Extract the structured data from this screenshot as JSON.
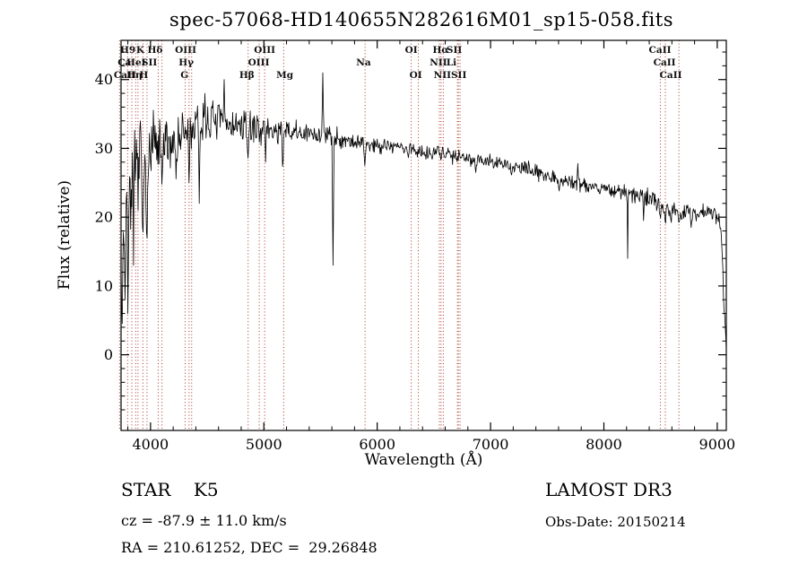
{
  "title": "spec-57068-HD140655N282616M01_sp15-058.fits",
  "axes": {
    "x_label": "Wavelength (Å)",
    "y_label": "Flux (relative)",
    "x_ticks": [
      4000,
      5000,
      6000,
      7000,
      8000,
      9000
    ],
    "y_ticks": [
      0,
      10,
      20,
      30,
      40
    ],
    "xlim": [
      3740,
      9080
    ],
    "ylim": [
      -11,
      45.7
    ]
  },
  "footer": {
    "object_type": "STAR    K5",
    "survey": "LAMOST DR3",
    "cz": "cz = -87.9 ± 11.0 km/s",
    "obs_date": "Obs-Date: 20150214",
    "coords": "RA = 210.61252, DEC =  29.26848"
  },
  "chart_data": {
    "type": "line",
    "title": "spec-57068-HD140655N282616M01_sp15-058.fits",
    "xlabel": "Wavelength (Å)",
    "ylabel": "Flux (relative)",
    "xlim": [
      3740,
      9080
    ],
    "ylim": [
      -11,
      45.7
    ],
    "grid": false,
    "line_color": "#000000",
    "marker_line_color": "#a93226",
    "continuum_points": [
      [
        3740,
        16
      ],
      [
        3760,
        18
      ],
      [
        3780,
        20
      ],
      [
        3820,
        24
      ],
      [
        3860,
        26
      ],
      [
        3900,
        27
      ],
      [
        3940,
        27
      ],
      [
        3980,
        28
      ],
      [
        4020,
        29
      ],
      [
        4100,
        30
      ],
      [
        4200,
        31
      ],
      [
        4300,
        32
      ],
      [
        4400,
        33
      ],
      [
        4500,
        34
      ],
      [
        4600,
        34
      ],
      [
        4700,
        33.5
      ],
      [
        4800,
        33
      ],
      [
        4900,
        33
      ],
      [
        5000,
        33
      ],
      [
        5100,
        32.5
      ],
      [
        5200,
        32.5
      ],
      [
        5350,
        32
      ],
      [
        5500,
        32
      ],
      [
        5650,
        31.5
      ],
      [
        5800,
        31
      ],
      [
        5950,
        30.5
      ],
      [
        6100,
        30.5
      ],
      [
        6250,
        30
      ],
      [
        6400,
        29.5
      ],
      [
        6563,
        29.5
      ],
      [
        6700,
        29
      ],
      [
        6850,
        28.5
      ],
      [
        7000,
        28
      ],
      [
        7150,
        27.5
      ],
      [
        7300,
        27
      ],
      [
        7450,
        26.5
      ],
      [
        7600,
        25.5
      ],
      [
        7750,
        25
      ],
      [
        7900,
        24.5
      ],
      [
        8050,
        24
      ],
      [
        8200,
        23.5
      ],
      [
        8350,
        23
      ],
      [
        8450,
        22.5
      ],
      [
        8520,
        21.5
      ],
      [
        8600,
        21
      ],
      [
        8700,
        20.5
      ],
      [
        8800,
        20.5
      ],
      [
        8900,
        21
      ],
      [
        8960,
        20.5
      ],
      [
        9010,
        20
      ],
      [
        9040,
        17
      ],
      [
        9060,
        8
      ],
      [
        9075,
        2
      ],
      [
        9080,
        1
      ]
    ],
    "noise_levels": [
      [
        3740,
        7
      ],
      [
        3800,
        6
      ],
      [
        3900,
        5
      ],
      [
        4000,
        4
      ],
      [
        4150,
        3.2
      ],
      [
        4350,
        2.8
      ],
      [
        4600,
        2.2
      ],
      [
        4900,
        1.8
      ],
      [
        5200,
        1.4
      ],
      [
        5600,
        1.2
      ],
      [
        6000,
        1.0
      ],
      [
        6400,
        0.9
      ],
      [
        6800,
        0.9
      ],
      [
        7200,
        0.8
      ],
      [
        7600,
        0.9
      ],
      [
        8000,
        0.9
      ],
      [
        8400,
        1.1
      ],
      [
        8700,
        1.1
      ],
      [
        9000,
        0.9
      ],
      [
        9080,
        0.5
      ]
    ],
    "spikes": [
      [
        3748,
        1,
        8
      ],
      [
        3775,
        8,
        8
      ],
      [
        3800,
        6,
        8
      ],
      [
        3850,
        13,
        8
      ],
      [
        3910,
        34,
        8
      ],
      [
        3933,
        15,
        12
      ],
      [
        3968,
        16,
        12
      ],
      [
        4026,
        36,
        8
      ],
      [
        4101,
        24,
        10
      ],
      [
        4226,
        25,
        8
      ],
      [
        4340,
        25,
        10
      ],
      [
        4430,
        22,
        8
      ],
      [
        4480,
        38,
        8
      ],
      [
        4650,
        40,
        8
      ],
      [
        4861,
        28,
        10
      ],
      [
        5015,
        28,
        8
      ],
      [
        5167,
        26,
        10
      ],
      [
        5520,
        41,
        9
      ],
      [
        5610,
        13,
        9
      ],
      [
        5890,
        27.5,
        12
      ],
      [
        6276,
        28.5,
        8
      ],
      [
        6563,
        28,
        10
      ],
      [
        6870,
        26.5,
        10
      ],
      [
        7186,
        26,
        8
      ],
      [
        7605,
        23.8,
        12
      ],
      [
        7770,
        27.8,
        8
      ],
      [
        8210,
        14,
        6
      ],
      [
        8350,
        19.5,
        8
      ],
      [
        8498,
        19.5,
        10
      ],
      [
        8542,
        19,
        10
      ],
      [
        8662,
        18.8,
        10
      ],
      [
        8770,
        18.5,
        8
      ],
      [
        9062,
        6,
        12
      ]
    ],
    "spectral_lines": [
      3727,
      3798,
      3835,
      3869,
      3889,
      3933,
      3969,
      4068,
      4101,
      4305,
      4340,
      4363,
      4861,
      4959,
      5007,
      5175,
      5893,
      6300,
      6363,
      6548,
      6563,
      6583,
      6708,
      6716,
      6731,
      8498,
      8542,
      8662
    ],
    "line_labels": [
      {
        "items": [
          {
            "text": "H9",
            "wl": 3800
          },
          {
            "text": "K",
            "wl": 3910
          },
          {
            "text": "Hδ",
            "wl": 4040
          },
          {
            "text": "OIII",
            "wl": 4310
          },
          {
            "text": "OIII",
            "wl": 5007
          },
          {
            "text": "OI",
            "wl": 6300
          },
          {
            "text": "Hα",
            "wl": 6560
          },
          {
            "text": "SII",
            "wl": 6680
          },
          {
            "text": "CaII",
            "wl": 8495
          }
        ]
      },
      {
        "items": [
          {
            "text": "Ca",
            "wl": 3770
          },
          {
            "text": "HeI",
            "wl": 3873
          },
          {
            "text": "SII",
            "wl": 3990
          },
          {
            "text": "Hγ",
            "wl": 4315
          },
          {
            "text": "OIII",
            "wl": 4955
          },
          {
            "text": "Na",
            "wl": 5880
          },
          {
            "text": "NII",
            "wl": 6540
          },
          {
            "text": "Li",
            "wl": 6655
          },
          {
            "text": "CaII",
            "wl": 8535
          }
        ]
      },
      {
        "items": [
          {
            "text": "CaII",
            "wl": 3775
          },
          {
            "text": "Hη",
            "wl": 3858
          },
          {
            "text": "H",
            "wl": 3940
          },
          {
            "text": "G",
            "wl": 4300
          },
          {
            "text": "Hβ",
            "wl": 4850
          },
          {
            "text": "Mg",
            "wl": 5185
          },
          {
            "text": "OI",
            "wl": 6340
          },
          {
            "text": "NII",
            "wl": 6575
          },
          {
            "text": "SII",
            "wl": 6720
          },
          {
            "text": "CaII",
            "wl": 8590
          }
        ]
      }
    ]
  }
}
